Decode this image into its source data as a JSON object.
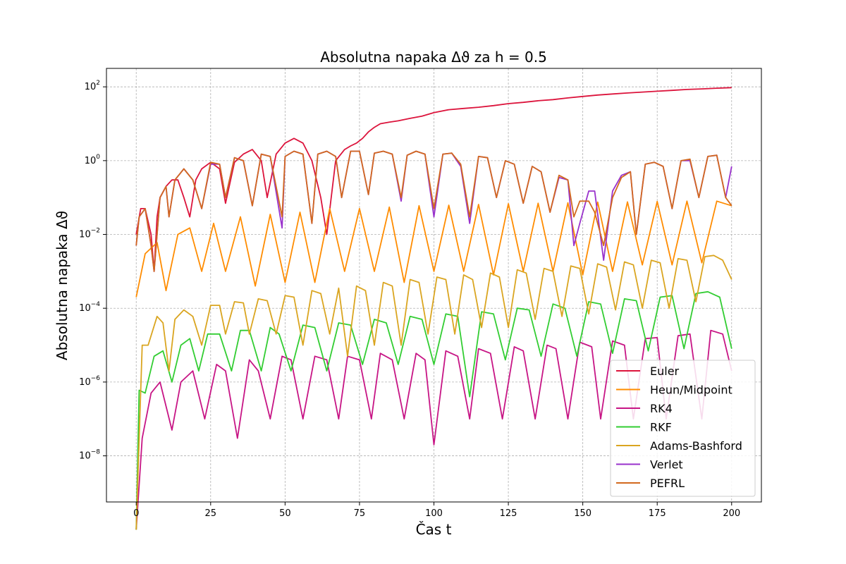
{
  "chart_data": {
    "type": "line",
    "title": "Absolutna napaka Δϑ za h = 0.5",
    "xlabel": "Čas t",
    "ylabel": "Absolutna napaka Δϑ",
    "xlim": [
      -10,
      210
    ],
    "ylim_log10": [
      -9.25,
      2.5
    ],
    "x_ticks": [
      0,
      25,
      50,
      75,
      100,
      125,
      150,
      175,
      200
    ],
    "y_ticks_log10": [
      -8,
      -6,
      -4,
      -2,
      0,
      2
    ],
    "y_scale": "log",
    "grid": true,
    "legend_position": "lower-right",
    "x_range": [
      0,
      200
    ],
    "series": [
      {
        "name": "Euler",
        "color": "#dc143c",
        "x": [
          0,
          1.5,
          3,
          5,
          6,
          7,
          8,
          10,
          12,
          14,
          16,
          18,
          20,
          22,
          25,
          28,
          30,
          33,
          36,
          39,
          42,
          44,
          47,
          50,
          53,
          56,
          59,
          62,
          64,
          67,
          70,
          72,
          74,
          76,
          78,
          80,
          82,
          85,
          88,
          92,
          96,
          100,
          105,
          110,
          115,
          120,
          125,
          130,
          135,
          140,
          145,
          150,
          155,
          160,
          165,
          170,
          175,
          180,
          185,
          190,
          195,
          200
        ],
        "y": [
          0.01,
          0.05,
          0.05,
          0.01,
          0.001,
          0.03,
          0.1,
          0.2,
          0.3,
          0.3,
          0.1,
          0.03,
          0.3,
          0.6,
          0.9,
          0.6,
          0.07,
          0.9,
          1.5,
          2.0,
          1.0,
          0.1,
          1.5,
          3.0,
          4.0,
          3.0,
          1.0,
          0.1,
          0.01,
          1.0,
          2.0,
          2.5,
          3.0,
          4.0,
          6.0,
          8.0,
          10.0,
          11.0,
          12.0,
          14.0,
          16.0,
          20.0,
          24.0,
          26.0,
          28.0,
          31.0,
          35.0,
          38.0,
          42.0,
          45.0,
          50.0,
          55.0,
          60.0,
          64.0,
          68.0,
          72.0,
          76.0,
          80.0,
          85.0,
          88.0,
          92.0,
          95.0
        ]
      },
      {
        "name": "Heun/Midpoint",
        "color": "#ff8c00",
        "x": [
          0,
          3,
          7,
          10,
          14,
          18,
          22,
          26,
          30,
          35,
          40,
          45,
          50,
          55,
          60,
          65,
          70,
          75,
          80,
          85,
          90,
          95,
          100,
          105,
          110,
          115,
          120,
          125,
          130,
          135,
          140,
          145,
          150,
          155,
          160,
          165,
          170,
          175,
          180,
          185,
          190,
          195,
          200
        ],
        "y": [
          0.0002,
          0.003,
          0.006,
          0.0003,
          0.01,
          0.015,
          0.001,
          0.02,
          0.001,
          0.03,
          0.0004,
          0.035,
          0.0005,
          0.04,
          0.0005,
          0.05,
          0.001,
          0.05,
          0.001,
          0.055,
          0.0005,
          0.06,
          0.001,
          0.062,
          0.001,
          0.065,
          0.0008,
          0.068,
          0.001,
          0.07,
          0.001,
          0.072,
          0.0008,
          0.075,
          0.001,
          0.076,
          0.0015,
          0.078,
          0.0015,
          0.08,
          0.0017,
          0.08,
          0.06
        ]
      },
      {
        "name": "RK4",
        "color": "#c71585",
        "x": [
          0,
          2,
          5,
          8,
          12,
          15,
          19,
          23,
          27,
          30,
          34,
          38,
          41,
          45,
          49,
          52,
          56,
          60,
          64,
          68,
          71,
          75,
          79,
          82,
          86,
          90,
          94,
          97,
          100,
          104,
          108,
          112,
          115,
          119,
          123,
          127,
          130,
          134,
          138,
          141,
          145,
          149,
          153,
          156,
          160,
          164,
          167,
          171,
          175,
          178,
          182,
          186,
          190,
          193,
          197,
          200
        ],
        "y": [
          1e-10,
          3e-08,
          5e-07,
          1e-06,
          5e-08,
          1e-06,
          2e-06,
          1e-07,
          3e-06,
          2e-06,
          3e-08,
          4e-06,
          2e-06,
          1e-07,
          5e-06,
          4e-06,
          1e-07,
          5e-06,
          4e-06,
          1e-07,
          5e-06,
          4e-06,
          1e-07,
          6e-06,
          4e-06,
          1e-07,
          6e-06,
          4e-06,
          2e-08,
          7e-06,
          5e-06,
          1e-07,
          8e-06,
          6e-06,
          1e-07,
          9e-06,
          7e-06,
          1e-07,
          1e-05,
          8e-06,
          1e-07,
          1.2e-05,
          9e-06,
          1e-07,
          1.3e-05,
          1e-05,
          1e-07,
          1.5e-05,
          1.6e-05,
          1e-07,
          1.8e-05,
          2e-05,
          1e-07,
          2.5e-05,
          2e-05,
          2e-06
        ]
      },
      {
        "name": "RKF",
        "color": "#32cd32",
        "x": [
          0,
          1,
          3,
          6,
          9,
          12,
          15,
          18,
          21,
          24,
          28,
          32,
          35,
          38,
          42,
          45,
          48,
          52,
          56,
          60,
          64,
          68,
          72,
          76,
          80,
          84,
          88,
          92,
          96,
          100,
          104,
          108,
          112,
          116,
          120,
          124,
          128,
          132,
          136,
          140,
          144,
          148,
          152,
          156,
          160,
          164,
          168,
          172,
          176,
          180,
          184,
          188,
          192,
          196,
          200
        ],
        "y": [
          1e-10,
          6e-07,
          5e-07,
          5e-06,
          7e-06,
          1e-06,
          1e-05,
          1.5e-05,
          2e-06,
          2e-05,
          2e-05,
          2e-06,
          2.5e-05,
          2.5e-05,
          2e-06,
          3e-05,
          2e-05,
          2e-06,
          3.5e-05,
          3e-05,
          2e-06,
          4e-05,
          3.5e-05,
          3e-06,
          5e-05,
          4e-05,
          3e-06,
          6e-05,
          5e-05,
          3e-06,
          7e-05,
          6e-05,
          4e-07,
          8e-05,
          7e-05,
          4e-06,
          0.0001,
          9e-05,
          5e-06,
          0.00013,
          0.0001,
          5e-06,
          0.00015,
          0.00013,
          6e-06,
          0.00018,
          0.00016,
          7e-06,
          0.0002,
          0.00022,
          8e-06,
          0.00025,
          0.00028,
          0.0002,
          8e-06
        ]
      },
      {
        "name": "Adams-Bashford",
        "color": "#daa520",
        "x": [
          0,
          2,
          4,
          7,
          9,
          11,
          13,
          16,
          19,
          22,
          25,
          28,
          30,
          33,
          36,
          38,
          41,
          44,
          47,
          50,
          53,
          56,
          59,
          62,
          65,
          68,
          71,
          74,
          77,
          80,
          83,
          86,
          89,
          92,
          95,
          98,
          101,
          104,
          107,
          110,
          113,
          116,
          119,
          122,
          125,
          128,
          131,
          134,
          137,
          140,
          143,
          146,
          149,
          152,
          155,
          158,
          161,
          164,
          167,
          170,
          173,
          176,
          179,
          182,
          185,
          188,
          191,
          194,
          197,
          200
        ],
        "y": [
          1e-10,
          1e-05,
          1e-05,
          6e-05,
          4e-05,
          2e-06,
          5e-05,
          9e-05,
          6e-05,
          1e-05,
          0.00012,
          0.00012,
          2e-05,
          0.00015,
          0.00014,
          2e-05,
          0.00018,
          0.00016,
          2e-05,
          0.00022,
          0.0002,
          1e-05,
          0.0003,
          0.00025,
          2e-05,
          0.00035,
          5e-06,
          0.0004,
          0.0003,
          1e-05,
          0.0005,
          0.0004,
          1e-05,
          0.0006,
          0.0005,
          2e-05,
          0.0007,
          0.0006,
          2e-05,
          0.0008,
          0.0006,
          3e-05,
          0.0009,
          0.0007,
          3e-05,
          0.0011,
          0.0009,
          5e-05,
          0.0012,
          0.001,
          6e-05,
          0.0014,
          0.0012,
          7e-05,
          0.0016,
          0.0013,
          9e-05,
          0.0018,
          0.0015,
          0.0001,
          0.002,
          0.0017,
          0.0001,
          0.0022,
          0.002,
          0.00015,
          0.0025,
          0.0027,
          0.002,
          0.0006
        ]
      },
      {
        "name": "Verlet",
        "color": "#9932cc",
        "x": [
          0,
          1,
          3,
          5,
          6,
          8,
          10,
          11,
          13,
          16,
          19,
          22,
          25,
          28,
          30,
          33,
          36,
          39,
          42,
          45,
          49,
          50,
          53,
          56,
          59,
          61,
          64,
          67,
          69,
          72,
          75,
          78,
          80,
          83,
          86,
          89,
          91,
          94,
          97,
          100,
          103,
          106,
          109,
          112,
          115,
          118,
          121,
          124,
          127,
          130,
          133,
          136,
          139,
          142,
          145,
          147,
          149,
          152,
          154,
          157,
          160,
          163,
          166,
          168,
          171,
          174,
          177,
          180,
          183,
          186,
          189,
          192,
          195,
          198,
          200
        ],
        "y": [
          0.005,
          0.03,
          0.05,
          0.005,
          0.001,
          0.1,
          0.2,
          0.03,
          0.3,
          0.6,
          0.3,
          0.05,
          0.8,
          0.8,
          0.1,
          1.2,
          1.0,
          0.06,
          1.5,
          1.3,
          0.015,
          1.3,
          1.8,
          1.5,
          0.02,
          1.5,
          1.8,
          1.3,
          0.1,
          1.8,
          1.8,
          0.12,
          1.6,
          1.8,
          1.5,
          0.08,
          1.4,
          1.8,
          1.5,
          0.03,
          1.5,
          1.6,
          0.7,
          0.02,
          1.3,
          1.2,
          0.1,
          1.0,
          0.8,
          0.07,
          0.7,
          0.5,
          0.04,
          0.35,
          0.3,
          0.005,
          0.02,
          0.15,
          0.15,
          0.002,
          0.15,
          0.4,
          0.5,
          0.01,
          0.8,
          0.9,
          0.7,
          0.05,
          1.0,
          1.0,
          0.1,
          1.3,
          1.4,
          0.1,
          0.7
        ]
      },
      {
        "name": "PEFRL",
        "color": "#d2691e",
        "x": [
          0,
          1,
          3,
          5,
          6,
          8,
          10,
          11,
          13,
          16,
          19,
          22,
          25,
          28,
          30,
          33,
          36,
          39,
          42,
          45,
          49,
          50,
          53,
          56,
          59,
          61,
          64,
          67,
          69,
          72,
          75,
          78,
          80,
          83,
          86,
          89,
          91,
          94,
          97,
          100,
          103,
          106,
          109,
          112,
          115,
          118,
          121,
          124,
          127,
          130,
          133,
          136,
          139,
          142,
          145,
          147,
          149,
          152,
          154,
          157,
          160,
          163,
          166,
          168,
          171,
          174,
          177,
          180,
          183,
          186,
          189,
          192,
          195,
          198,
          200
        ],
        "y": [
          0.005,
          0.03,
          0.05,
          0.005,
          0.001,
          0.1,
          0.2,
          0.03,
          0.3,
          0.6,
          0.3,
          0.05,
          0.9,
          0.8,
          0.1,
          1.2,
          1.0,
          0.06,
          1.5,
          1.3,
          0.03,
          1.3,
          1.8,
          1.5,
          0.02,
          1.5,
          1.8,
          1.3,
          0.1,
          1.8,
          1.8,
          0.12,
          1.6,
          1.8,
          1.5,
          0.1,
          1.4,
          1.8,
          1.5,
          0.05,
          1.5,
          1.6,
          0.8,
          0.03,
          1.3,
          1.2,
          0.1,
          1.0,
          0.8,
          0.07,
          0.7,
          0.5,
          0.04,
          0.4,
          0.3,
          0.03,
          0.08,
          0.08,
          0.04,
          0.005,
          0.1,
          0.35,
          0.5,
          0.01,
          0.8,
          0.9,
          0.7,
          0.05,
          1.0,
          1.1,
          0.1,
          1.3,
          1.4,
          0.1,
          0.06
        ]
      }
    ]
  }
}
